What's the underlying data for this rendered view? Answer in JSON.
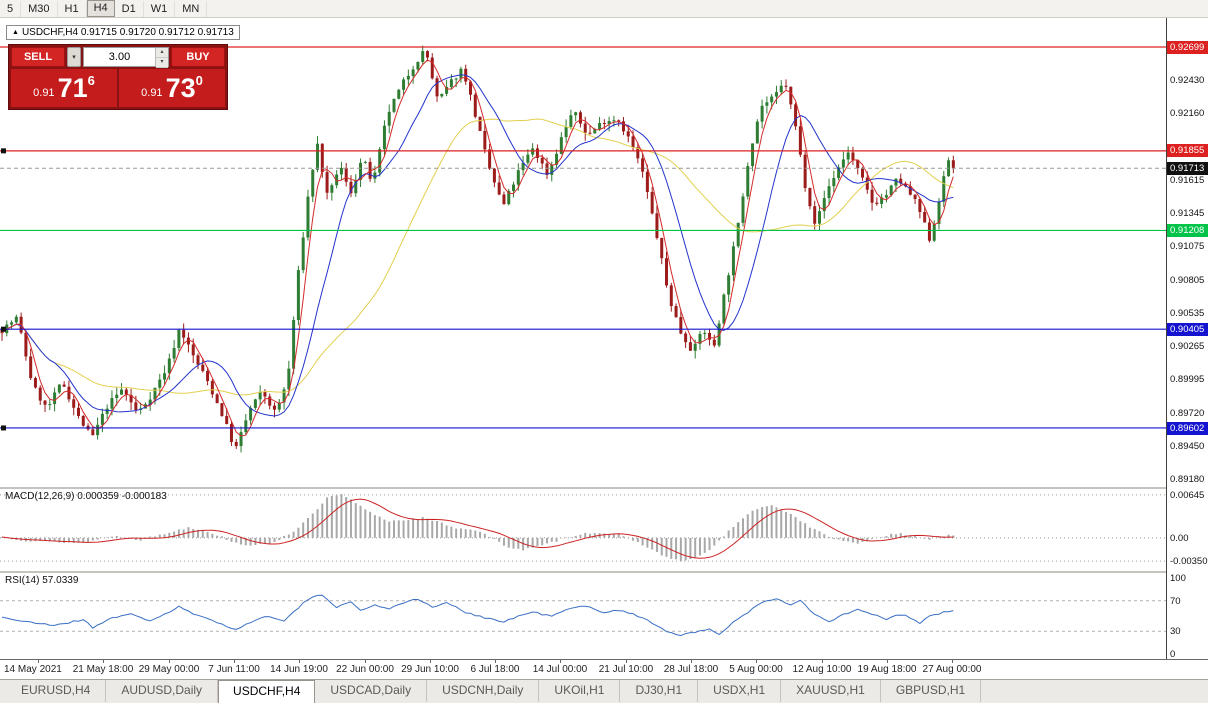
{
  "toolbar": {
    "timeframes": [
      {
        "label": "5"
      },
      {
        "label": "M30"
      },
      {
        "label": "H1"
      },
      {
        "label": "H4",
        "active": true
      },
      {
        "label": "D1"
      },
      {
        "label": "W1"
      },
      {
        "label": "MN"
      }
    ]
  },
  "chart_header": {
    "symbol_title": "USDCHF,H4 0.91715 0.91720 0.91712 0.91713"
  },
  "trade_panel": {
    "sell_label": "SELL",
    "buy_label": "BUY",
    "volume": "3.00",
    "sell_price": {
      "small": "0.91",
      "big": "71",
      "sup": "6"
    },
    "buy_price": {
      "small": "0.91",
      "big": "73",
      "sup": "0"
    }
  },
  "bid": {
    "text": "0.91713",
    "price": 0.91713
  },
  "price_axis": [
    {
      "text": "0.92699",
      "price": 0.92699,
      "tag": "red"
    },
    {
      "text": "0.92430",
      "price": 0.9243
    },
    {
      "text": "0.92160",
      "price": 0.9216
    },
    {
      "text": "0.91855",
      "price": 0.91855,
      "tag": "red"
    },
    {
      "text": "0.91713",
      "price": 0.91713,
      "tag": "black"
    },
    {
      "text": "0.91615",
      "price": 0.91615
    },
    {
      "text": "0.91345",
      "price": 0.91345
    },
    {
      "text": "0.91208",
      "price": 0.91208,
      "tag": "green"
    },
    {
      "text": "0.91075",
      "price": 0.91075
    },
    {
      "text": "0.90805",
      "price": 0.90805
    },
    {
      "text": "0.90535",
      "price": 0.90535
    },
    {
      "text": "0.90405",
      "price": 0.90405,
      "tag": "blue"
    },
    {
      "text": "0.90265",
      "price": 0.90265
    },
    {
      "text": "0.89995",
      "price": 0.89995
    },
    {
      "text": "0.89720",
      "price": 0.8972
    },
    {
      "text": "0.89602",
      "price": 0.89602,
      "tag": "blue"
    },
    {
      "text": "0.89450",
      "price": 0.8945
    },
    {
      "text": "0.89180",
      "price": 0.8918
    }
  ],
  "hlines": [
    {
      "price": 0.92699,
      "color": "red"
    },
    {
      "price": 0.91855,
      "color": "red",
      "handles": true
    },
    {
      "price": 0.91208,
      "color": "green"
    },
    {
      "price": 0.90405,
      "color": "blue",
      "handles": true
    },
    {
      "price": 0.89602,
      "color": "blue",
      "handles": true
    }
  ],
  "indicators": {
    "macd": {
      "label": "MACD(12,26,9) 0.000359 -0.000183",
      "axis": [
        {
          "text": "0.00645",
          "value": 0.00645
        },
        {
          "text": "0.00",
          "value": 0
        },
        {
          "text": "-0.00350",
          "value": -0.0035
        }
      ]
    },
    "rsi": {
      "label": "RSI(14) 57.0339",
      "axis": [
        {
          "text": "100",
          "value": 100
        },
        {
          "text": "70",
          "value": 70
        },
        {
          "text": "30",
          "value": 30
        },
        {
          "text": "0",
          "value": 0
        }
      ],
      "levels": [
        70,
        30
      ]
    }
  },
  "time_axis": [
    "14 May 2021",
    "21 May 18:00",
    "29 May 00:00",
    "7 Jun 11:00",
    "14 Jun 19:00",
    "22 Jun 00:00",
    "29 Jun 10:00",
    "6 Jul 18:00",
    "14 Jul 00:00",
    "21 Jul 10:00",
    "28 Jul 18:00",
    "5 Aug 00:00",
    "12 Aug 10:00",
    "19 Aug 18:00",
    "27 Aug 00:00"
  ],
  "tabs": [
    {
      "label": "EURUSD,H4"
    },
    {
      "label": "AUDUSD,Daily"
    },
    {
      "label": "USDCHF,H4",
      "active": true
    },
    {
      "label": "USDCAD,Daily"
    },
    {
      "label": "USDCNH,Daily"
    },
    {
      "label": "UKOil,H1"
    },
    {
      "label": "DJ30,H1"
    },
    {
      "label": "USDX,H1"
    },
    {
      "label": "XAUUSD,H1"
    },
    {
      "label": "GBPUSD,H1"
    }
  ],
  "colors": {
    "line_red": "#dd2020",
    "line_green": "#00c34a",
    "line_blue": "#1414d0",
    "tag_black": "#111111",
    "candle_up": "#2e7d32",
    "candle_down": "#9c1b1b",
    "ma_fast": "#d42a2a",
    "ma_mid": "#2233cc",
    "ma_slow": "#e3cf4e",
    "macd_hist": "#a8a8a8",
    "macd_signal": "#cc2222",
    "rsi_line": "#3a6fc4",
    "panel_bg": "#8a1212",
    "button_red": "#d42525",
    "price_box": "#c41c1c"
  },
  "chart_data": {
    "type": "candlestick",
    "title": "USDCHF H4 with MACD(12,26,9) and RSI(14)",
    "price_range": [
      0.89122,
      0.92935
    ],
    "data_width_frac": 0.82,
    "price_path": [
      [
        0.0,
        0.904
      ],
      [
        0.005,
        0.904
      ],
      [
        0.021,
        0.905
      ],
      [
        0.037,
        0.8995
      ],
      [
        0.052,
        0.8975
      ],
      [
        0.068,
        0.8998
      ],
      [
        0.084,
        0.897
      ],
      [
        0.099,
        0.8952
      ],
      [
        0.115,
        0.8978
      ],
      [
        0.131,
        0.8992
      ],
      [
        0.147,
        0.8972
      ],
      [
        0.162,
        0.8988
      ],
      [
        0.178,
        0.901
      ],
      [
        0.191,
        0.9042
      ],
      [
        0.204,
        0.902
      ],
      [
        0.22,
        0.8998
      ],
      [
        0.236,
        0.897
      ],
      [
        0.249,
        0.8942
      ],
      [
        0.264,
        0.8975
      ],
      [
        0.277,
        0.899
      ],
      [
        0.291,
        0.8972
      ],
      [
        0.304,
        0.9
      ],
      [
        0.314,
        0.908
      ],
      [
        0.327,
        0.916
      ],
      [
        0.335,
        0.919
      ],
      [
        0.346,
        0.9145
      ],
      [
        0.358,
        0.9175
      ],
      [
        0.369,
        0.915
      ],
      [
        0.382,
        0.918
      ],
      [
        0.393,
        0.9158
      ],
      [
        0.408,
        0.9215
      ],
      [
        0.424,
        0.924
      ],
      [
        0.438,
        0.9258
      ],
      [
        0.448,
        0.9268
      ],
      [
        0.461,
        0.9225
      ],
      [
        0.473,
        0.924
      ],
      [
        0.487,
        0.9253
      ],
      [
        0.5,
        0.9215
      ],
      [
        0.513,
        0.9175
      ],
      [
        0.529,
        0.914
      ],
      [
        0.545,
        0.9168
      ],
      [
        0.56,
        0.9188
      ],
      [
        0.576,
        0.9166
      ],
      [
        0.592,
        0.92
      ],
      [
        0.602,
        0.9218
      ],
      [
        0.618,
        0.9198
      ],
      [
        0.634,
        0.921
      ],
      [
        0.649,
        0.9212
      ],
      [
        0.663,
        0.9192
      ],
      [
        0.675,
        0.9168
      ],
      [
        0.689,
        0.912
      ],
      [
        0.702,
        0.9068
      ],
      [
        0.715,
        0.9038
      ],
      [
        0.728,
        0.9022
      ],
      [
        0.738,
        0.9042
      ],
      [
        0.749,
        0.9024
      ],
      [
        0.762,
        0.9075
      ],
      [
        0.775,
        0.9125
      ],
      [
        0.787,
        0.9185
      ],
      [
        0.799,
        0.9222
      ],
      [
        0.812,
        0.9228
      ],
      [
        0.824,
        0.9242
      ],
      [
        0.835,
        0.9205
      ],
      [
        0.845,
        0.9158
      ],
      [
        0.856,
        0.9125
      ],
      [
        0.867,
        0.9152
      ],
      [
        0.88,
        0.9172
      ],
      [
        0.89,
        0.9185
      ],
      [
        0.903,
        0.9165
      ],
      [
        0.916,
        0.9142
      ],
      [
        0.93,
        0.915
      ],
      [
        0.942,
        0.9163
      ],
      [
        0.955,
        0.915
      ],
      [
        0.963,
        0.914
      ],
      [
        0.976,
        0.9112
      ],
      [
        0.986,
        0.915
      ],
      [
        0.995,
        0.9178
      ],
      [
        1.0,
        0.91713
      ]
    ],
    "macd_range": [
      -0.00498,
      0.00733
    ],
    "macd_path": [
      [
        0.0,
        0.0002
      ],
      [
        0.03,
        -0.0004
      ],
      [
        0.06,
        -0.0006
      ],
      [
        0.09,
        -0.0008
      ],
      [
        0.12,
        0.0003
      ],
      [
        0.15,
        -0.0003
      ],
      [
        0.18,
        0.0008
      ],
      [
        0.2,
        0.0016
      ],
      [
        0.22,
        0.001
      ],
      [
        0.25,
        -0.0008
      ],
      [
        0.27,
        -0.0012
      ],
      [
        0.29,
        -0.0006
      ],
      [
        0.31,
        0.001
      ],
      [
        0.33,
        0.0035
      ],
      [
        0.345,
        0.006
      ],
      [
        0.36,
        0.0065
      ],
      [
        0.375,
        0.0052
      ],
      [
        0.39,
        0.0038
      ],
      [
        0.41,
        0.0025
      ],
      [
        0.43,
        0.0028
      ],
      [
        0.445,
        0.003
      ],
      [
        0.46,
        0.0024
      ],
      [
        0.48,
        0.0015
      ],
      [
        0.5,
        0.0012
      ],
      [
        0.515,
        0.0002
      ],
      [
        0.53,
        -0.0012
      ],
      [
        0.55,
        -0.0018
      ],
      [
        0.57,
        -0.0012
      ],
      [
        0.59,
        -0.0002
      ],
      [
        0.61,
        0.0006
      ],
      [
        0.63,
        0.0008
      ],
      [
        0.65,
        0.0004
      ],
      [
        0.66,
        -0.0002
      ],
      [
        0.675,
        -0.001
      ],
      [
        0.69,
        -0.0022
      ],
      [
        0.705,
        -0.0032
      ],
      [
        0.72,
        -0.0035
      ],
      [
        0.735,
        -0.0028
      ],
      [
        0.75,
        -0.0012
      ],
      [
        0.765,
        0.001
      ],
      [
        0.78,
        0.003
      ],
      [
        0.795,
        0.0044
      ],
      [
        0.81,
        0.0048
      ],
      [
        0.825,
        0.004
      ],
      [
        0.84,
        0.0026
      ],
      [
        0.855,
        0.0012
      ],
      [
        0.87,
        0.0002
      ],
      [
        0.885,
        -0.0006
      ],
      [
        0.9,
        -0.0008
      ],
      [
        0.915,
        -0.0002
      ],
      [
        0.93,
        0.0004
      ],
      [
        0.945,
        0.0006
      ],
      [
        0.96,
        0.0002
      ],
      [
        0.975,
        -0.0002
      ],
      [
        0.99,
        0.0003
      ],
      [
        1.0,
        0.00036
      ]
    ],
    "rsi_path": [
      [
        0.0,
        50
      ],
      [
        0.03,
        42
      ],
      [
        0.06,
        38
      ],
      [
        0.09,
        45
      ],
      [
        0.1,
        35
      ],
      [
        0.12,
        48
      ],
      [
        0.14,
        52
      ],
      [
        0.16,
        44
      ],
      [
        0.18,
        55
      ],
      [
        0.19,
        62
      ],
      [
        0.21,
        50
      ],
      [
        0.23,
        42
      ],
      [
        0.25,
        32
      ],
      [
        0.27,
        45
      ],
      [
        0.285,
        50
      ],
      [
        0.3,
        44
      ],
      [
        0.31,
        55
      ],
      [
        0.325,
        72
      ],
      [
        0.34,
        78
      ],
      [
        0.355,
        62
      ],
      [
        0.37,
        68
      ],
      [
        0.38,
        58
      ],
      [
        0.395,
        64
      ],
      [
        0.41,
        60
      ],
      [
        0.425,
        68
      ],
      [
        0.44,
        72
      ],
      [
        0.455,
        62
      ],
      [
        0.47,
        67
      ],
      [
        0.49,
        55
      ],
      [
        0.51,
        48
      ],
      [
        0.53,
        42
      ],
      [
        0.545,
        50
      ],
      [
        0.56,
        55
      ],
      [
        0.58,
        50
      ],
      [
        0.6,
        60
      ],
      [
        0.615,
        63
      ],
      [
        0.635,
        55
      ],
      [
        0.65,
        58
      ],
      [
        0.665,
        52
      ],
      [
        0.68,
        45
      ],
      [
        0.7,
        30
      ],
      [
        0.715,
        25
      ],
      [
        0.73,
        28
      ],
      [
        0.745,
        33
      ],
      [
        0.755,
        26
      ],
      [
        0.77,
        42
      ],
      [
        0.785,
        55
      ],
      [
        0.8,
        68
      ],
      [
        0.815,
        72
      ],
      [
        0.83,
        65
      ],
      [
        0.84,
        70
      ],
      [
        0.855,
        52
      ],
      [
        0.87,
        42
      ],
      [
        0.885,
        52
      ],
      [
        0.9,
        58
      ],
      [
        0.915,
        52
      ],
      [
        0.93,
        46
      ],
      [
        0.945,
        52
      ],
      [
        0.955,
        48
      ],
      [
        0.965,
        40
      ],
      [
        0.975,
        50
      ],
      [
        0.99,
        55
      ],
      [
        1.0,
        57.03
      ]
    ]
  }
}
